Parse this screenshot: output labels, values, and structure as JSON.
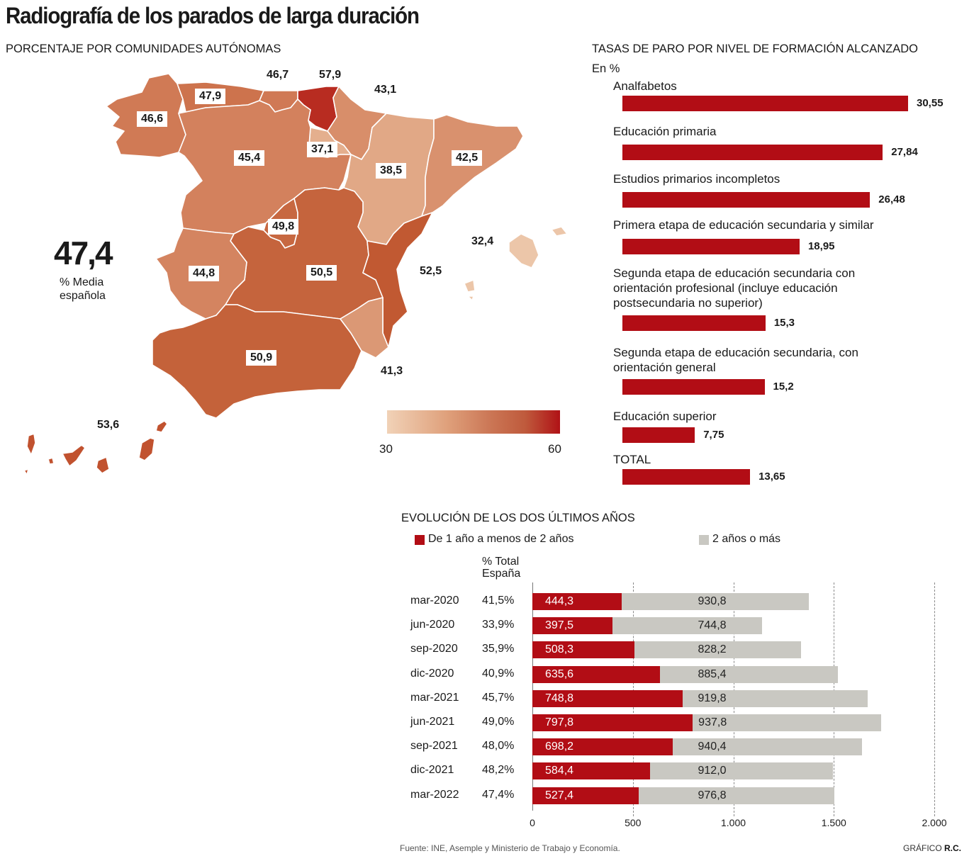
{
  "title": "Radiografía de los parados de larga duración",
  "map": {
    "subtitle": "PORCENTAJE POR COMUNIDADES AUTÓNOMAS",
    "average_value": "47,4",
    "average_label_line1": "% Media",
    "average_label_line2": "española",
    "scale_min": "30",
    "scale_max": "60",
    "colors": {
      "low": "#f1d2b7",
      "high": "#b01216"
    },
    "regions": [
      {
        "name": "Galicia",
        "value": "46,6",
        "v": 46.6
      },
      {
        "name": "Asturias",
        "value": "47,9",
        "v": 47.9
      },
      {
        "name": "Cantabria",
        "value": "46,7",
        "v": 46.7
      },
      {
        "name": "País Vasco",
        "value": "57,9",
        "v": 57.9
      },
      {
        "name": "Navarra",
        "value": "43,1",
        "v": 43.1
      },
      {
        "name": "La Rioja",
        "value": "37,1",
        "v": 37.1
      },
      {
        "name": "Castilla y León",
        "value": "45,4",
        "v": 45.4
      },
      {
        "name": "Aragón",
        "value": "38,5",
        "v": 38.5
      },
      {
        "name": "Cataluña",
        "value": "42,5",
        "v": 42.5
      },
      {
        "name": "Madrid",
        "value": "49,8",
        "v": 49.8
      },
      {
        "name": "Castilla-La Mancha",
        "value": "50,5",
        "v": 50.5
      },
      {
        "name": "Comunidad Valenciana",
        "value": "52,5",
        "v": 52.5
      },
      {
        "name": "Baleares",
        "value": "32,4",
        "v": 32.4
      },
      {
        "name": "Extremadura",
        "value": "44,8",
        "v": 44.8
      },
      {
        "name": "Andalucía",
        "value": "50,9",
        "v": 50.9
      },
      {
        "name": "Murcia",
        "value": "41,3",
        "v": 41.3
      },
      {
        "name": "Canarias",
        "value": "53,6",
        "v": 53.6
      }
    ]
  },
  "chart_data": [
    {
      "type": "bar",
      "title": "TASAS DE PARO POR NIVEL DE FORMACIÓN ALCANZADO",
      "unit_label": "En %",
      "orientation": "horizontal",
      "categories": [
        [
          "Analfabetos"
        ],
        [
          "Educación primaria"
        ],
        [
          "Estudios primarios incompletos"
        ],
        [
          "Primera etapa de educación secundaria y similar"
        ],
        [
          "Segunda etapa de educación secundaria con",
          "orientación profesional (incluye educación",
          "postsecundaria no superior)"
        ],
        [
          "Segunda etapa de educación secundaria, con",
          "orientación general"
        ],
        [
          "Educación superior"
        ],
        [
          "TOTAL"
        ]
      ],
      "values": [
        30.55,
        27.84,
        26.48,
        18.95,
        15.3,
        15.2,
        7.75,
        13.65
      ],
      "value_labels": [
        "30,55",
        "27,84",
        "26,48",
        "18,95",
        "15,3",
        "15,2",
        "7,75",
        "13,65"
      ],
      "color": "#b20d15"
    },
    {
      "type": "bar",
      "stacked": true,
      "orientation": "horizontal",
      "title": "EVOLUCIÓN DE LOS DOS ÚLTIMOS AÑOS",
      "pct_header_line1": "% Total",
      "pct_header_line2": "España",
      "categories": [
        "mar-2020",
        "jun-2020",
        "sep-2020",
        "dic-2020",
        "mar-2021",
        "jun-2021",
        "sep-2021",
        "dic-2021",
        "mar-2022"
      ],
      "pct_total": [
        "41,5%",
        "33,9%",
        "35,9%",
        "40,9%",
        "45,7%",
        "49,0%",
        "48,0%",
        "48,2%",
        "47,4%"
      ],
      "series": [
        {
          "name": "De 1 año a menos de 2 años",
          "color": "#b20d15",
          "values": [
            444.3,
            397.5,
            508.3,
            635.6,
            748.8,
            797.8,
            698.2,
            584.4,
            527.4
          ],
          "labels": [
            "444,3",
            "397,5",
            "508,3",
            "635,6",
            "748,8",
            "797,8",
            "698,2",
            "584,4",
            "527,4"
          ]
        },
        {
          "name": "2 años o más",
          "color": "#c9c8c2",
          "values": [
            930.8,
            744.8,
            828.2,
            885.4,
            919.8,
            937.8,
            940.4,
            912.0,
            976.8
          ],
          "labels": [
            "930,8",
            "744,8",
            "828,2",
            "885,4",
            "919,8",
            "937,8",
            "940,4",
            "912,0",
            "976,8"
          ]
        }
      ],
      "xlim": [
        0,
        2000
      ],
      "xticks": [
        0,
        500,
        1000,
        1500,
        2000
      ],
      "xtick_labels": [
        "0",
        "500",
        "1.000",
        "1.500",
        "2.000"
      ],
      "grid": true
    }
  ],
  "footer": {
    "source": "Fuente: INE, Asemple y Ministerio de Trabajo y Economía.",
    "credit_prefix": "GRÁFICO ",
    "credit_author": "R.C."
  }
}
